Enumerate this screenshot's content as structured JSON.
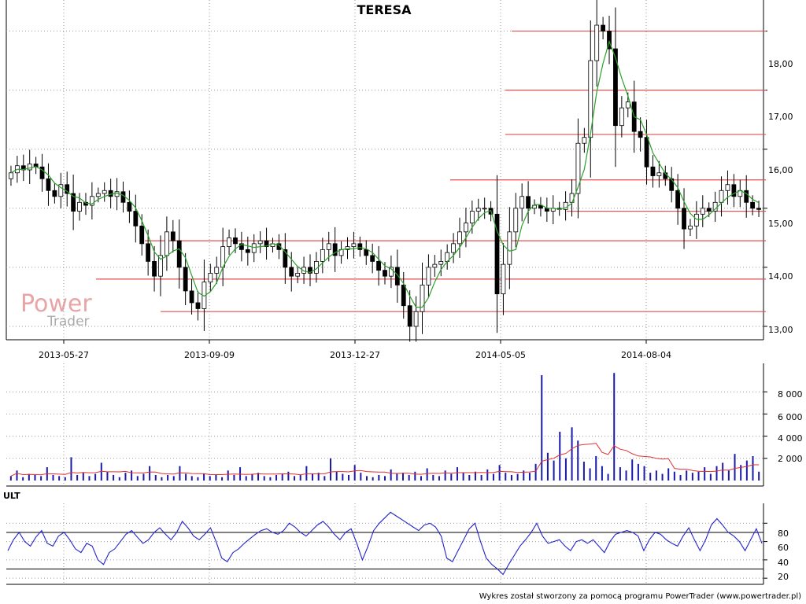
{
  "chart_data": [
    {
      "type": "candlestick",
      "title": "TERESA",
      "x_tick_labels": [
        "2013-05-27",
        "2013-09-09",
        "2013-12-27",
        "2014-05-05",
        "2014-08-04"
      ],
      "y_tick_labels": [
        "13,00",
        "14,00",
        "15,00",
        "16,00",
        "17,00",
        "18,00"
      ],
      "ylim": [
        12.8,
        18.5
      ],
      "grid": true,
      "moving_average_color": "#2ca02c",
      "support_resistance_color": "#e05050",
      "support_resistance_levels": [
        18.0,
        17.0,
        16.25,
        15.48,
        14.95,
        14.45,
        13.8,
        13.25
      ],
      "close": [
        15.6,
        15.72,
        15.65,
        15.75,
        15.7,
        15.5,
        15.3,
        15.2,
        15.4,
        15.25,
        14.95,
        15.1,
        15.05,
        15.2,
        15.25,
        15.3,
        15.2,
        15.28,
        15.1,
        14.95,
        14.7,
        14.4,
        14.1,
        13.85,
        14.2,
        14.6,
        14.45,
        14.0,
        13.6,
        13.4,
        13.3,
        13.75,
        13.9,
        14.0,
        14.35,
        14.5,
        14.4,
        14.3,
        14.25,
        14.4,
        14.45,
        14.35,
        14.4,
        14.3,
        14.0,
        13.85,
        13.9,
        14.0,
        13.9,
        14.1,
        14.3,
        14.4,
        14.2,
        14.3,
        14.35,
        14.4,
        14.3,
        14.2,
        14.1,
        13.95,
        13.85,
        14.0,
        13.7,
        13.35,
        13.0,
        13.25,
        13.7,
        14.0,
        14.05,
        14.1,
        14.25,
        14.4,
        14.6,
        14.75,
        14.95,
        15.0,
        15.0,
        14.9,
        13.55,
        14.05,
        14.6,
        15.0,
        15.2,
        15.0,
        15.05,
        15.0,
        14.95,
        15.0,
        14.98,
        15.1,
        15.25,
        16.1,
        16.2,
        17.5,
        18.1,
        18.0,
        17.7,
        16.4,
        16.7,
        16.8,
        16.3,
        16.2,
        15.7,
        15.55,
        15.6,
        15.5,
        15.3,
        15.0,
        14.65,
        14.7,
        14.9,
        15.0,
        14.95,
        15.1,
        15.3,
        15.4,
        15.2,
        15.3,
        15.1,
        15.0,
        14.98
      ],
      "xlabel": "",
      "ylabel": ""
    },
    {
      "type": "bar",
      "title": "",
      "y_tick_labels": [
        "2 000",
        "4 000",
        "6 000",
        "8 000"
      ],
      "ylim": [
        0,
        10000
      ],
      "bar_color": "#1a1aaa",
      "moving_average_color": "#e03030",
      "volume": [
        400,
        900,
        300,
        600,
        500,
        400,
        1200,
        500,
        400,
        300,
        2100,
        500,
        700,
        400,
        600,
        1600,
        800,
        500,
        300,
        700,
        900,
        400,
        600,
        1300,
        500,
        300,
        500,
        400,
        1300,
        600,
        400,
        300,
        600,
        400,
        500,
        300,
        900,
        500,
        1200,
        400,
        600,
        700,
        400,
        300,
        500,
        600,
        800,
        400,
        500,
        1300,
        600,
        700,
        400,
        2000,
        800,
        600,
        500,
        1400,
        700,
        400,
        300,
        500,
        400,
        1000,
        600,
        700,
        500,
        800,
        400,
        1100,
        500,
        400,
        900,
        600,
        1200,
        700,
        500,
        800,
        500,
        1000,
        600,
        1400,
        700,
        500,
        600,
        900,
        700,
        1500,
        9500,
        2500,
        1800,
        4400,
        2000,
        4800,
        3600,
        1700,
        1100,
        2200,
        1300,
        600,
        9700,
        1200,
        900,
        1900,
        1500,
        1300,
        700,
        900,
        600,
        1100,
        800,
        500,
        900,
        700,
        800,
        1200,
        600,
        1300,
        1600,
        900,
        2400,
        1400,
        1800,
        2200,
        800
      ]
    },
    {
      "type": "line",
      "title": "ULT",
      "y_tick_labels": [
        "20",
        "40",
        "60",
        "80"
      ],
      "ylim": [
        15,
        100
      ],
      "reference_lines": [
        30,
        70
      ],
      "line_color": "#2222cc",
      "values": [
        50,
        62,
        70,
        60,
        55,
        65,
        72,
        58,
        55,
        66,
        70,
        62,
        52,
        48,
        58,
        55,
        40,
        35,
        48,
        52,
        60,
        68,
        72,
        65,
        58,
        62,
        70,
        75,
        68,
        62,
        70,
        82,
        75,
        66,
        62,
        68,
        75,
        60,
        42,
        38,
        48,
        52,
        58,
        63,
        68,
        72,
        74,
        70,
        68,
        72,
        80,
        76,
        70,
        66,
        72,
        78,
        82,
        76,
        68,
        62,
        70,
        74,
        58,
        40,
        55,
        72,
        80,
        86,
        92,
        88,
        84,
        80,
        76,
        72,
        78,
        80,
        76,
        66,
        42,
        38,
        50,
        62,
        74,
        80,
        60,
        42,
        35,
        30,
        24,
        35,
        45,
        55,
        62,
        70,
        80,
        66,
        58,
        60,
        62,
        55,
        50,
        60,
        62,
        58,
        62,
        55,
        48,
        60,
        68,
        70,
        72,
        70,
        66,
        50,
        62,
        70,
        68,
        62,
        58,
        55,
        66,
        75,
        62,
        50,
        62,
        78,
        85,
        78,
        70,
        66,
        60,
        50,
        62,
        74,
        58
      ]
    }
  ],
  "footer": {
    "credit": "Wykres został stworzony za pomocą programu PowerTrader (www.powertrader.pl)"
  },
  "watermark": {
    "line1": "Power",
    "line2": "Trader"
  }
}
